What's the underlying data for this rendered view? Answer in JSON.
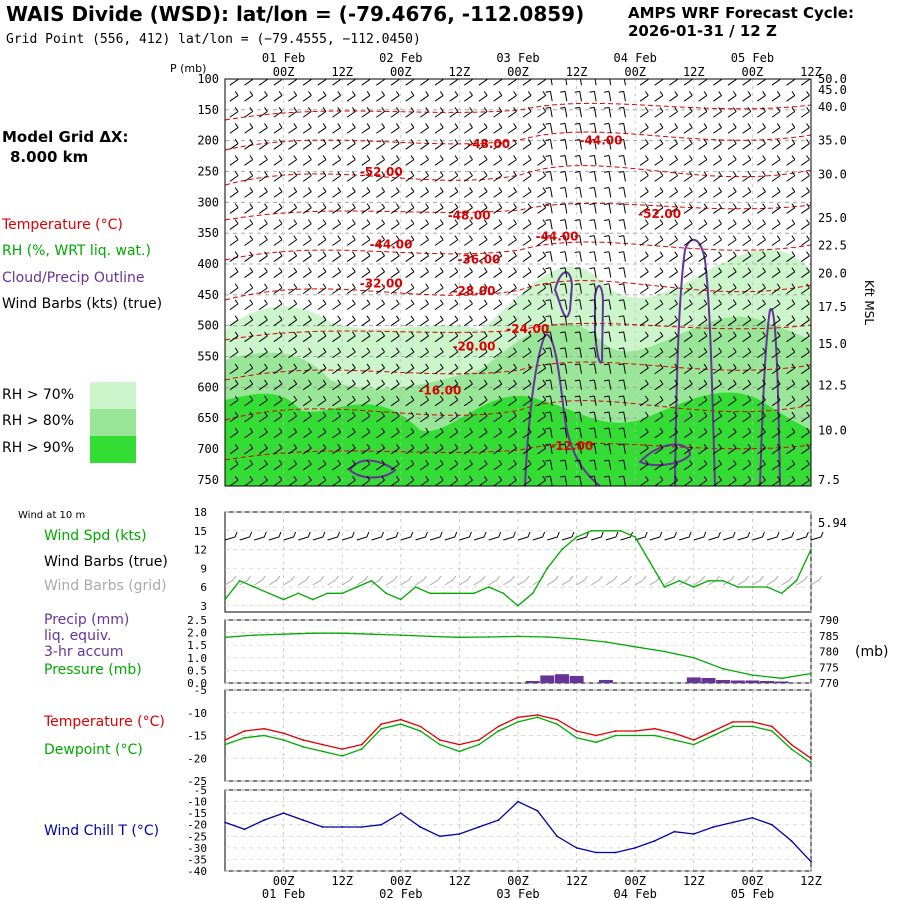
{
  "header": {
    "title": "WAIS Divide (WSD):  lat/lon = (-79.4676, -112.0859)",
    "subtitle": "Grid Point (556, 412) lat/lon = (−79.4555, −112.0450)",
    "cycle_label": "AMPS WRF Forecast Cycle:",
    "cycle_value": "2026-01-31 / 12  Z",
    "grid_dx_label": "Model Grid ΔX:",
    "grid_dx_value": "8.000 km"
  },
  "time_axis": {
    "ticks": [
      "00Z",
      "12Z",
      "00Z",
      "12Z",
      "00Z",
      "12Z",
      "00Z",
      "12Z",
      "00Z",
      "12Z"
    ],
    "tick_hours": [
      12,
      24,
      36,
      48,
      60,
      72,
      84,
      96,
      108,
      120
    ],
    "dates": [
      "01 Feb",
      "02 Feb",
      "03 Feb",
      "04 Feb",
      "05 Feb"
    ],
    "date_hours": [
      12,
      36,
      60,
      84,
      108
    ],
    "range_hours": [
      0,
      120
    ]
  },
  "legend": {
    "temperature": "Temperature (°C)",
    "rh": "RH (%, WRT liq. wat.)",
    "cloud": "Cloud/Precip Outline",
    "wind": "Wind Barbs (kts) (true)",
    "rh70": "RH > 70%",
    "rh80": "RH > 80%",
    "rh90": "RH > 90%",
    "wind10m": "Wind at 10 m",
    "wspd": "Wind Spd (kts)",
    "wbarb_true": "Wind Barbs (true)",
    "wbarb_grid": "Wind Barbs (grid)",
    "precip1": "Precip (mm)",
    "precip2": "liq. equiv.",
    "precip3": "3-hr accum",
    "pressure": "Pressure (mb)",
    "temp2": "Temperature (°C)",
    "dewpoint": "Dewpoint (°C)",
    "windchill": "Wind Chill T (°C)",
    "mb_unit": "(mb)",
    "kft": "Kft MSL",
    "p_unit": "P (mb)"
  },
  "colors": {
    "temperature": "#dd0000",
    "rh_text": "#00aa00",
    "cloud": "#663399",
    "rh70": "#ccf5cc",
    "rh80": "#99e699",
    "rh90": "#33dd33",
    "grid_barb": "#aaaaaa",
    "windchill": "#0000aa"
  },
  "chart_data": [
    {
      "type": "heatmap",
      "name": "cross-section",
      "ylabel": "P (mb)",
      "y_ticks": [
        100,
        150,
        200,
        250,
        300,
        350,
        400,
        450,
        500,
        550,
        600,
        650,
        700,
        750
      ],
      "right_labels": [
        "50.0",
        "45.0",
        "40.0",
        "35.0",
        "30.0",
        "25.0",
        "22.5",
        "20.0",
        "17.5",
        "15.0",
        "12.5",
        "10.0",
        "7.5",
        "5.94"
      ],
      "right_label_p": [
        100,
        118,
        145,
        200,
        255,
        325,
        370,
        415,
        470,
        530,
        597,
        670,
        750,
        820
      ],
      "temperature_labels": [
        {
          "text": "-48.00",
          "hour": 54,
          "p": 212
        },
        {
          "text": "-44.00",
          "hour": 77,
          "p": 206
        },
        {
          "text": "-52.00",
          "hour": 32,
          "p": 257
        },
        {
          "text": "-48.00",
          "hour": 50,
          "p": 328
        },
        {
          "text": "-52.00",
          "hour": 89,
          "p": 325
        },
        {
          "text": "-44.00",
          "hour": 34,
          "p": 375
        },
        {
          "text": "-44.00",
          "hour": 68,
          "p": 362
        },
        {
          "text": "-36.00",
          "hour": 52,
          "p": 399
        },
        {
          "text": "-32.00",
          "hour": 32,
          "p": 438
        },
        {
          "text": "-28.00",
          "hour": 51,
          "p": 450
        },
        {
          "text": "-24.00",
          "hour": 62,
          "p": 512
        },
        {
          "text": "-20.00",
          "hour": 51,
          "p": 540
        },
        {
          "text": "-16.00",
          "hour": 44,
          "p": 612
        },
        {
          "text": "-12.00",
          "hour": 71,
          "p": 702
        }
      ]
    },
    {
      "type": "line",
      "name": "wind-speed",
      "ylabel": "Wind Spd (kts)",
      "y_ticks": [
        3,
        6,
        9,
        12,
        15,
        18
      ],
      "ylim": [
        2,
        18
      ],
      "x": [
        0,
        3,
        6,
        9,
        12,
        15,
        18,
        21,
        24,
        27,
        30,
        33,
        36,
        39,
        42,
        45,
        48,
        51,
        54,
        57,
        60,
        63,
        66,
        69,
        72,
        75,
        78,
        81,
        84,
        87,
        90,
        93,
        96,
        99,
        102,
        105,
        108,
        111,
        114,
        117,
        120
      ],
      "values": [
        4,
        7,
        6,
        5,
        4,
        5,
        4,
        5,
        5,
        6,
        7,
        5,
        4,
        6,
        5,
        5,
        5,
        5,
        6,
        5,
        3,
        5,
        9,
        12,
        14,
        15,
        15,
        15,
        14,
        10,
        6,
        7,
        6,
        7,
        7,
        6,
        6,
        6,
        5,
        7,
        12
      ]
    },
    {
      "type": "bar",
      "name": "precip",
      "ylabel": "Precip (mm)",
      "y_ticks": [
        0.0,
        0.5,
        1.0,
        1.5,
        2.0,
        2.5
      ],
      "ylim": [
        0,
        2.5
      ],
      "x": [
        63,
        66,
        69,
        72,
        78,
        96,
        99,
        102,
        105,
        108,
        111,
        114
      ],
      "values": [
        0.08,
        0.3,
        0.35,
        0.28,
        0.12,
        0.22,
        0.2,
        0.12,
        0.1,
        0.1,
        0.08,
        0.06
      ]
    },
    {
      "type": "line",
      "name": "pressure",
      "ylabel": "Pressure (mb)",
      "y_ticks": [
        770,
        775,
        780,
        785,
        790
      ],
      "ylim": [
        770,
        790
      ],
      "x": [
        0,
        6,
        12,
        18,
        24,
        30,
        36,
        42,
        48,
        54,
        60,
        66,
        72,
        78,
        84,
        90,
        96,
        102,
        108,
        114,
        120
      ],
      "values": [
        784.5,
        785.2,
        785.5,
        785.8,
        785.8,
        785.5,
        785.2,
        784.8,
        784.5,
        784.6,
        784.8,
        784.6,
        784,
        783,
        781.5,
        780,
        778,
        774.5,
        772.5,
        771.5,
        773
      ]
    },
    {
      "type": "line",
      "name": "temperature-dewpoint",
      "y_ticks": [
        -5,
        -10,
        -15,
        -20,
        -25
      ],
      "ylim": [
        -25,
        -5
      ],
      "x": [
        0,
        4,
        8,
        12,
        16,
        20,
        24,
        28,
        32,
        36,
        40,
        44,
        48,
        52,
        56,
        60,
        64,
        68,
        72,
        76,
        80,
        84,
        88,
        92,
        96,
        100,
        104,
        108,
        112,
        116,
        120
      ],
      "series": [
        {
          "name": "Temperature",
          "values": [
            -16,
            -14,
            -13.5,
            -14.5,
            -16,
            -17,
            -18,
            -17,
            -12.5,
            -11.5,
            -13,
            -16,
            -17,
            -16,
            -13,
            -11,
            -10.5,
            -11.5,
            -14,
            -15,
            -14,
            -14,
            -13.5,
            -14.5,
            -16,
            -14,
            -12,
            -12,
            -13,
            -17,
            -20
          ]
        },
        {
          "name": "Dewpoint",
          "values": [
            -17,
            -15.5,
            -15,
            -16,
            -17.5,
            -18.5,
            -19.5,
            -18,
            -13.5,
            -12.5,
            -14,
            -17,
            -18.5,
            -17,
            -14,
            -12,
            -11,
            -12.5,
            -15.5,
            -16.5,
            -15,
            -15,
            -15,
            -16,
            -17,
            -15,
            -13,
            -13,
            -14,
            -18,
            -21
          ]
        }
      ]
    },
    {
      "type": "line",
      "name": "wind-chill",
      "ylabel": "Wind Chill T (°C)",
      "y_ticks": [
        -5,
        -10,
        -15,
        -20,
        -25,
        -30,
        -35,
        -40
      ],
      "ylim": [
        -40,
        -5
      ],
      "x": [
        0,
        4,
        8,
        12,
        16,
        20,
        24,
        28,
        32,
        36,
        40,
        44,
        48,
        52,
        56,
        60,
        64,
        68,
        72,
        76,
        80,
        84,
        88,
        92,
        96,
        100,
        104,
        108,
        112,
        116,
        120
      ],
      "values": [
        -19,
        -22,
        -18,
        -15,
        -18,
        -21,
        -21,
        -21,
        -20,
        -15,
        -21,
        -25,
        -24,
        -21,
        -18,
        -10,
        -14,
        -25,
        -30,
        -32,
        -32,
        -30,
        -27,
        -23,
        -24,
        -21,
        -19,
        -17,
        -20,
        -27,
        -36
      ]
    }
  ]
}
